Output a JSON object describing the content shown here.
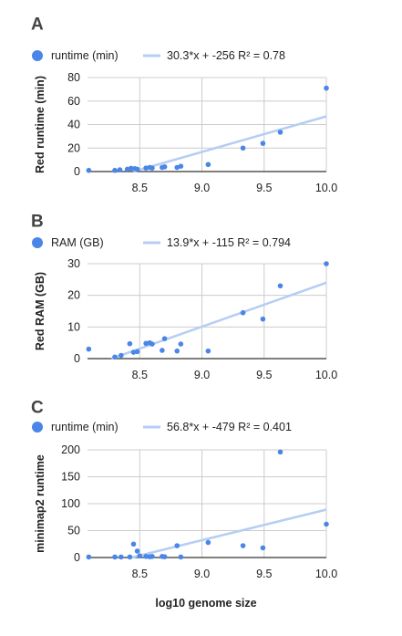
{
  "shared_xlabel": "log10 genome size",
  "colors": {
    "point": "#4a86e8",
    "trend": "#b6cdf4",
    "grid": "#cccccc",
    "axis": "#333333",
    "text": "#222222"
  },
  "chart_data": [
    {
      "panel_label": "A",
      "type": "scatter",
      "legend": [
        {
          "marker": "dot",
          "label": "runtime (min)"
        },
        {
          "marker": "line",
          "label": "30.3*x + -256 R² = 0.78"
        }
      ],
      "ylabel": "Red runtime (min)",
      "xlim": [
        8.08,
        10.0
      ],
      "ylim": [
        0,
        80
      ],
      "xticks": [
        "8.5",
        "9.0",
        "9.5",
        "10.0"
      ],
      "yticks": [
        "0",
        "20",
        "40",
        "60",
        "80"
      ],
      "grid": true,
      "trendline": {
        "slope": 30.3,
        "intercept": -256
      },
      "points": [
        [
          8.09,
          1
        ],
        [
          8.3,
          1
        ],
        [
          8.34,
          1.5
        ],
        [
          8.4,
          2
        ],
        [
          8.43,
          2.8
        ],
        [
          8.46,
          2.5
        ],
        [
          8.48,
          2
        ],
        [
          8.55,
          3
        ],
        [
          8.58,
          3.5
        ],
        [
          8.6,
          3
        ],
        [
          8.68,
          3.5
        ],
        [
          8.7,
          4
        ],
        [
          8.8,
          3.5
        ],
        [
          8.83,
          4.5
        ],
        [
          9.05,
          6
        ],
        [
          9.33,
          20
        ],
        [
          9.49,
          24
        ],
        [
          9.63,
          33.5
        ],
        [
          10.0,
          71
        ]
      ]
    },
    {
      "panel_label": "B",
      "type": "scatter",
      "legend": [
        {
          "marker": "dot",
          "label": "RAM (GB)"
        },
        {
          "marker": "line",
          "label": "13.9*x + -115 R² = 0.794"
        }
      ],
      "ylabel": "Red RAM (GB)",
      "xlim": [
        8.08,
        10.0
      ],
      "ylim": [
        0,
        30
      ],
      "xticks": [
        "8.5",
        "9.0",
        "9.5",
        "10.0"
      ],
      "yticks": [
        "0",
        "10",
        "20",
        "30"
      ],
      "grid": true,
      "trendline": {
        "slope": 13.9,
        "intercept": -115
      },
      "points": [
        [
          8.09,
          3
        ],
        [
          8.3,
          0.5
        ],
        [
          8.35,
          1
        ],
        [
          8.42,
          4.7
        ],
        [
          8.45,
          2
        ],
        [
          8.48,
          2.2
        ],
        [
          8.55,
          4.8
        ],
        [
          8.58,
          5
        ],
        [
          8.6,
          4.6
        ],
        [
          8.68,
          2.6
        ],
        [
          8.7,
          6.3
        ],
        [
          8.8,
          2.4
        ],
        [
          8.83,
          4.6
        ],
        [
          9.05,
          2.4
        ],
        [
          9.33,
          14.5
        ],
        [
          9.49,
          12.5
        ],
        [
          9.63,
          23
        ],
        [
          10.0,
          30
        ]
      ]
    },
    {
      "panel_label": "C",
      "type": "scatter",
      "legend": [
        {
          "marker": "dot",
          "label": "runtime (min)"
        },
        {
          "marker": "line",
          "label": "56.8*x + -479 R² = 0.401"
        }
      ],
      "ylabel": "minimap2 runtime",
      "xlim": [
        8.08,
        10.0
      ],
      "ylim": [
        0,
        200
      ],
      "xticks": [
        "8.5",
        "9.0",
        "9.5",
        "10.0"
      ],
      "yticks": [
        "0",
        "50",
        "100",
        "150",
        "200"
      ],
      "grid": true,
      "trendline": {
        "slope": 56.8,
        "intercept": -479
      },
      "points": [
        [
          8.09,
          1
        ],
        [
          8.3,
          1
        ],
        [
          8.35,
          1
        ],
        [
          8.42,
          1
        ],
        [
          8.45,
          25
        ],
        [
          8.48,
          12
        ],
        [
          8.5,
          3
        ],
        [
          8.55,
          2
        ],
        [
          8.58,
          1.5
        ],
        [
          8.6,
          2
        ],
        [
          8.68,
          2
        ],
        [
          8.7,
          1.5
        ],
        [
          8.8,
          22
        ],
        [
          8.83,
          1
        ],
        [
          9.05,
          28
        ],
        [
          9.33,
          22
        ],
        [
          9.49,
          18
        ],
        [
          9.63,
          196
        ],
        [
          10.0,
          62
        ]
      ]
    }
  ]
}
